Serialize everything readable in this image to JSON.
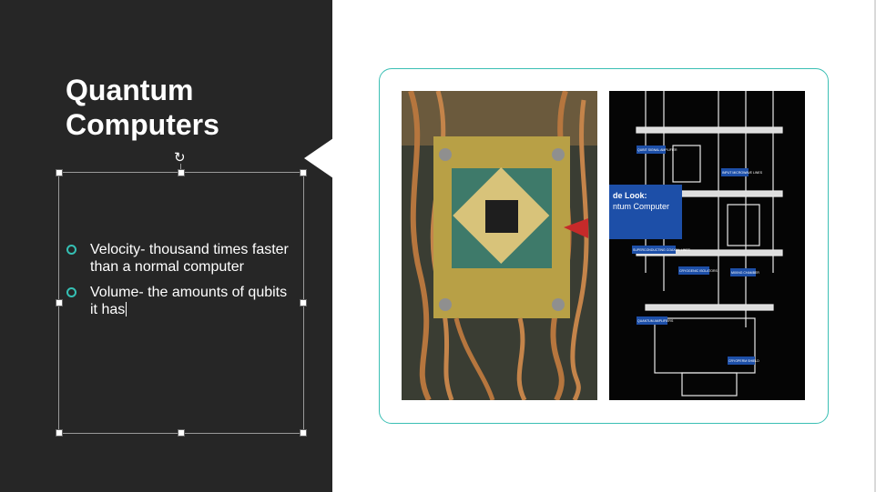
{
  "slide": {
    "title": "Quantum Computers",
    "bullets": [
      {
        "text": "Velocity- thousand times faster than a normal computer"
      },
      {
        "text": "Volume- the amounts of qubits it has"
      }
    ]
  },
  "images": {
    "left_photo": {
      "icon": "quantum-chip-photo"
    },
    "right_diagram": {
      "icon": "quantum-computer-diagram",
      "heading_line1": "de Look:",
      "heading_line2": "ntum Computer",
      "labels": [
        "QUBIT SIGNAL AMPLIFIER",
        "INPUT MICROWAVE LINES",
        "SUPERCONDUCTING COAXIAL LINES",
        "CRYOGENIC ISOLATORS",
        "QUANTUM AMPLIFIERS",
        "MIXING CHAMBER",
        "CRYOPERM SHIELD"
      ]
    }
  },
  "colors": {
    "panel": "#262626",
    "accent": "#35c0b4",
    "frame": "#3bbfb4"
  }
}
